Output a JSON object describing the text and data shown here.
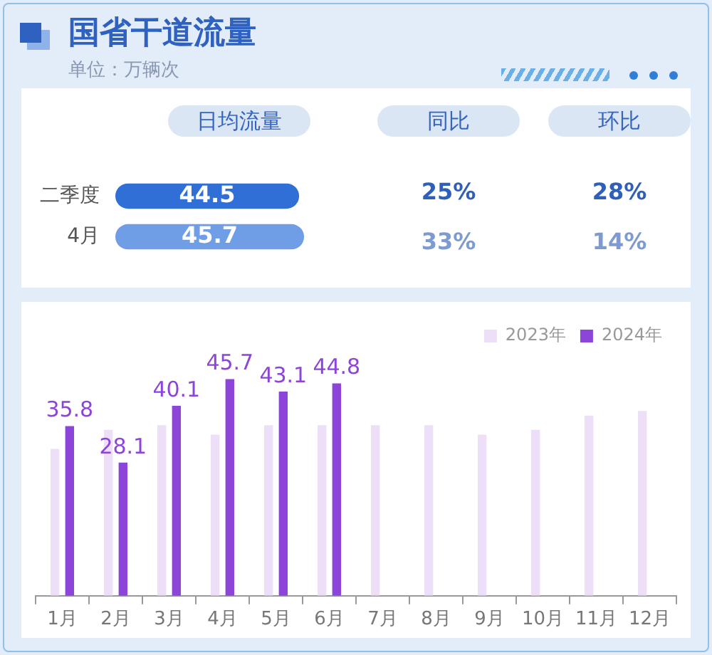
{
  "chart_data": [
    {
      "type": "bar",
      "orientation": "horizontal",
      "title": "国省干道流量",
      "subtitle": "单位：万辆次",
      "categories": [
        "二季度",
        "4月"
      ],
      "series": [
        {
          "name": "日均流量",
          "colors": [
            "#2f6fd6",
            "#6f9de6"
          ],
          "values": [
            44.5,
            45.7
          ]
        }
      ],
      "data_labels": true,
      "legend": false,
      "annotations": [
        "同比",
        "环比",
        "25%",
        "28%",
        "33%",
        "14%"
      ]
    },
    {
      "type": "bar",
      "categories": [
        "1月",
        "2月",
        "3月",
        "4月",
        "5月",
        "6月",
        "7月",
        "8月",
        "9月",
        "10月",
        "11月",
        "12月"
      ],
      "series": [
        {
          "name": "2023年",
          "color": "#eedff9",
          "values": [
            31,
            35,
            36,
            34,
            36,
            36,
            36,
            36,
            34,
            35,
            38,
            39
          ]
        },
        {
          "name": "2024年",
          "color": "#8d45d9",
          "values": [
            35.8,
            28.1,
            40.1,
            45.7,
            43.1,
            44.8,
            null,
            null,
            null,
            null,
            null,
            null
          ],
          "value_labels": [
            "35.8",
            "28.1",
            "40.1",
            "45.7",
            "43.1",
            "44.8",
            null,
            null,
            null,
            null,
            null,
            null
          ]
        }
      ],
      "legend": "top right"
    }
  ]
}
